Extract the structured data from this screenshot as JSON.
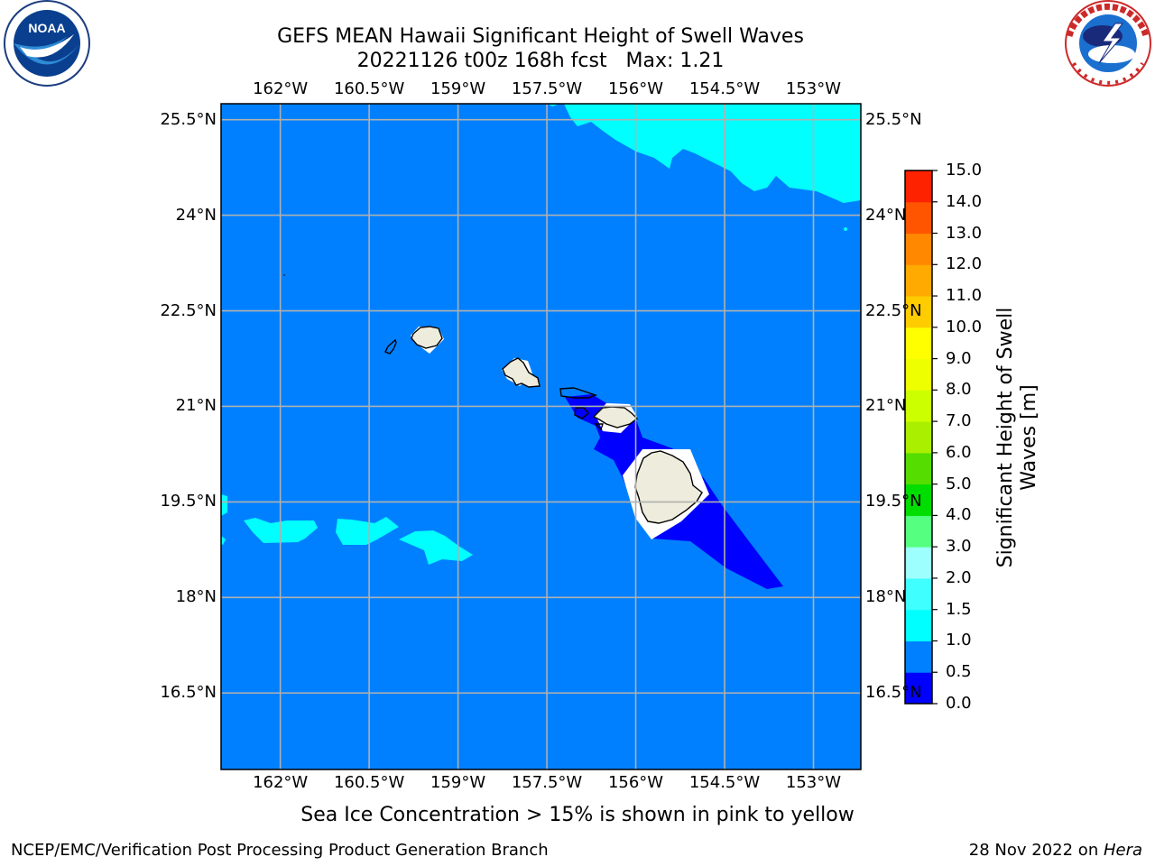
{
  "title": {
    "line1": "GEFS MEAN Hawaii Significant Height of Swell Waves",
    "line2": "20221126 t00z 168h fcst   Max: 1.21"
  },
  "logos": {
    "left": {
      "icon": "noaa-logo",
      "text": "NOAA",
      "ring_text": "NATIONAL OCEANIC AND ATMOSPHERIC ADMINISTRATION · U.S. DEPARTMENT OF COMMERCE"
    },
    "right": {
      "icon": "nws-logo",
      "ring_text": "NATIONAL WEATHER SERVICE"
    }
  },
  "map": {
    "lon_labels": [
      "162°W",
      "160.5°W",
      "159°W",
      "157.5°W",
      "156°W",
      "154.5°W",
      "153°W"
    ],
    "lat_labels": [
      "25.5°N",
      "24°N",
      "22.5°N",
      "21°N",
      "19.5°N",
      "18°N",
      "16.5°N"
    ],
    "lon_ticks_deg": [
      -162,
      -160.5,
      -159,
      -157.5,
      -156,
      -154.5,
      -153
    ],
    "lat_ticks_deg": [
      25.5,
      24,
      22.5,
      21,
      19.5,
      18,
      16.5
    ],
    "lon_range": [
      -163,
      -152.2
    ],
    "lat_range": [
      15.3,
      25.75
    ],
    "background_level_color": "#0080ff",
    "land_color": "#eeecdc",
    "grid_color": "#b0b0b0",
    "islands": [
      "Niihau",
      "Kauai",
      "Oahu",
      "Molokai",
      "Lanai",
      "Kahoolawe",
      "Maui",
      "Hawaii"
    ]
  },
  "colorbar": {
    "title": "Significant Height of Swell Waves [m]",
    "levels": [
      "0.0",
      "0.5",
      "1.0",
      "1.5",
      "2.0",
      "3.0",
      "4.0",
      "5.0",
      "6.0",
      "7.0",
      "8.0",
      "9.0",
      "10.0",
      "11.0",
      "12.0",
      "13.0",
      "14.0",
      "15.0"
    ],
    "colors": [
      "#0000ff",
      "#0080ff",
      "#00ffff",
      "#40ffff",
      "#9effff",
      "#55ff7f",
      "#00dd00",
      "#55dd00",
      "#aaee00",
      "#ccff00",
      "#eeff00",
      "#ffff00",
      "#ffcc00",
      "#ffaa00",
      "#ff8800",
      "#ff5500",
      "#ff2200"
    ]
  },
  "caption": "Sea Ice Concentration > 15% is shown in pink to yellow",
  "footer": {
    "left": "NCEP/EMC/Verification Post Processing Product Generation Branch",
    "right_prefix": "28 Nov 2022 on ",
    "right_host": "Hera"
  }
}
